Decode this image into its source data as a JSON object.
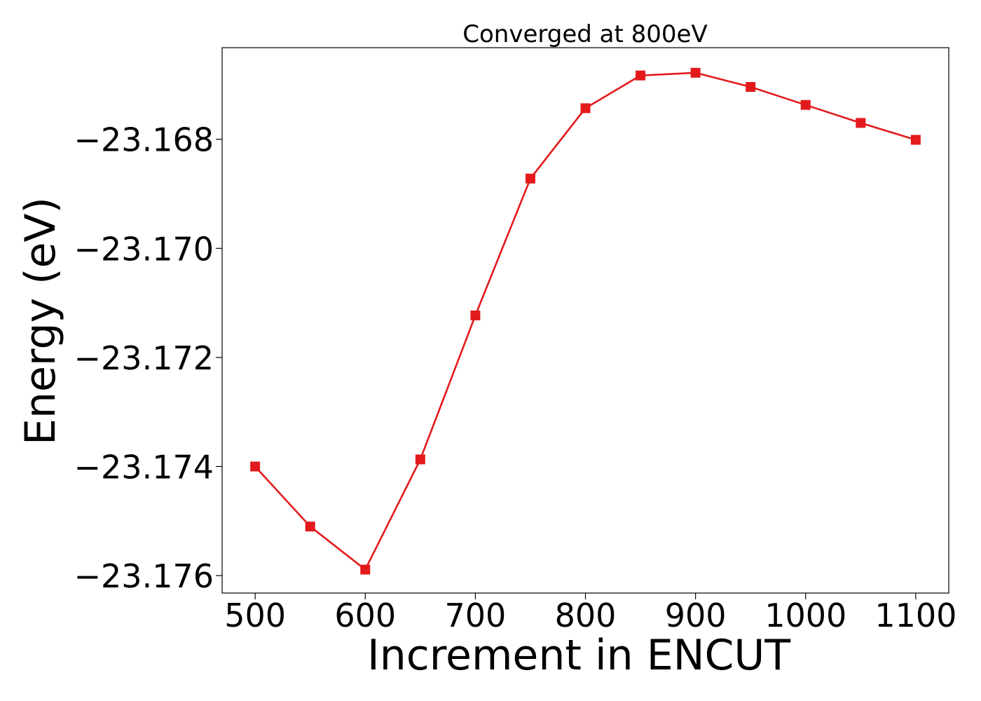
{
  "chart_data": {
    "type": "line",
    "title": "Converged at 800eV",
    "xlabel": "Increment in ENCUT",
    "ylabel": "Energy (eV)",
    "x": [
      500,
      550,
      600,
      650,
      700,
      750,
      800,
      850,
      900,
      950,
      1000,
      1050,
      1100
    ],
    "series": [
      {
        "values": [
          -23.174,
          -23.1751,
          -23.17589,
          -23.17387,
          -23.17123,
          -23.16872,
          -23.16743,
          -23.16683,
          -23.16678,
          -23.16704,
          -23.16737,
          -23.1677,
          -23.16801
        ],
        "color": "#e31a1c",
        "marker": "square"
      }
    ],
    "xlim": [
      470,
      1130
    ],
    "ylim": [
      -23.17632,
      -23.16632
    ],
    "xticks": [
      500,
      600,
      700,
      800,
      900,
      1000,
      1100
    ],
    "xtick_labels": [
      "500",
      "600",
      "700",
      "800",
      "900",
      "1000",
      "1100"
    ],
    "yticks": [
      -23.168,
      -23.17,
      -23.172,
      -23.174,
      -23.176
    ],
    "ytick_labels": [
      "−23.168",
      "−23.170",
      "−23.172",
      "−23.174",
      "−23.176"
    ],
    "grid": false,
    "legend": "none"
  }
}
